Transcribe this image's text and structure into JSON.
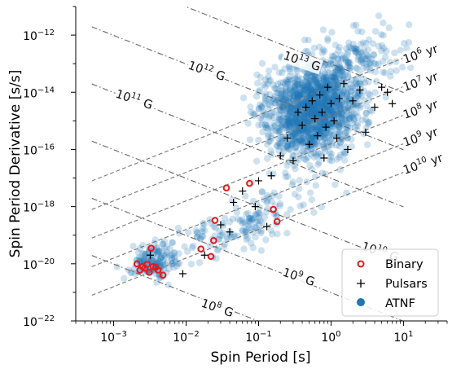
{
  "chart_data": {
    "type": "scatter",
    "xlabel": "Spin Period [s]",
    "ylabel": "Spin Period Derivative [s/s]",
    "xscale": "log",
    "yscale": "log",
    "xlim": [
      0.0003,
      40
    ],
    "ylim": [
      1e-22,
      1e-11
    ],
    "x_ticks": [
      {
        "value": 0.001,
        "label": "10",
        "exp": "−3"
      },
      {
        "value": 0.01,
        "label": "10",
        "exp": "−2"
      },
      {
        "value": 0.1,
        "label": "10",
        "exp": "−1"
      },
      {
        "value": 1,
        "label": "10",
        "exp": "0"
      },
      {
        "value": 10,
        "label": "10",
        "exp": "1"
      }
    ],
    "y_ticks": [
      {
        "value": 1e-22,
        "label": "10",
        "exp": "−22"
      },
      {
        "value": 1e-20,
        "label": "10",
        "exp": "−20"
      },
      {
        "value": 1e-18,
        "label": "10",
        "exp": "−18"
      },
      {
        "value": 1e-16,
        "label": "10",
        "exp": "−16"
      },
      {
        "value": 1e-14,
        "label": "10",
        "exp": "−14"
      },
      {
        "value": 1e-12,
        "label": "10",
        "exp": "−12"
      }
    ],
    "grid": false,
    "legend_position": "bottom-right",
    "legend": [
      {
        "name": "Binary",
        "marker": "circle-open",
        "color": "#e31a1c"
      },
      {
        "name": "Pulsars",
        "marker": "plus",
        "color": "#000000"
      },
      {
        "name": "ATNF",
        "marker": "circle",
        "color": "#1f77b4"
      }
    ],
    "magnetic_field_lines": [
      {
        "label": "10",
        "exp": "8",
        "unit": "G",
        "B": 100000000.0
      },
      {
        "label": "10",
        "exp": "9",
        "unit": "G",
        "B": 1000000000.0
      },
      {
        "label": "10",
        "exp": "10",
        "unit": "G",
        "B": 10000000000.0
      },
      {
        "label": "10",
        "exp": "11",
        "unit": "G",
        "B": 100000000000.0
      },
      {
        "label": "10",
        "exp": "12",
        "unit": "G",
        "B": 1000000000000.0
      },
      {
        "label": "10",
        "exp": "13",
        "unit": "G",
        "B": 10000000000000.0
      }
    ],
    "age_lines": [
      {
        "label": "10",
        "exp": "6",
        "unit": "yr",
        "age_yr": 1000000.0
      },
      {
        "label": "10",
        "exp": "7",
        "unit": "yr",
        "age_yr": 10000000.0
      },
      {
        "label": "10",
        "exp": "8",
        "unit": "yr",
        "age_yr": 100000000.0
      },
      {
        "label": "10",
        "exp": "9",
        "unit": "yr",
        "age_yr": 1000000000.0
      },
      {
        "label": "10",
        "exp": "10",
        "unit": "yr",
        "age_yr": 10000000000.0
      }
    ],
    "series": [
      {
        "name": "Binary",
        "points": [
          [
            0.0021,
            1e-20
          ],
          [
            0.0023,
            6e-21
          ],
          [
            0.0025,
            8e-21
          ],
          [
            0.0027,
            7e-21
          ],
          [
            0.0029,
            9.5e-21
          ],
          [
            0.0031,
            5e-21
          ],
          [
            0.0033,
            3.5e-20
          ],
          [
            0.0035,
            8e-21
          ],
          [
            0.0038,
            7.5e-21
          ],
          [
            0.0041,
            6e-21
          ],
          [
            0.0048,
            4e-21
          ],
          [
            0.016,
            3.3e-20
          ],
          [
            0.022,
            1.8e-20
          ],
          [
            0.024,
            6.5e-20
          ],
          [
            0.025,
            3.3e-19
          ],
          [
            0.036,
            4.5e-18
          ],
          [
            0.075,
            6.5e-18
          ],
          [
            0.16,
            8e-19
          ],
          [
            0.18,
            3e-19
          ]
        ]
      },
      {
        "name": "Pulsars",
        "points": [
          [
            0.0032,
            2e-20
          ],
          [
            0.009,
            4.5e-21
          ],
          [
            0.018,
            2e-20
          ],
          [
            0.03,
            2.3e-19
          ],
          [
            0.04,
            1.3e-19
          ],
          [
            0.045,
            1.4e-18
          ],
          [
            0.06,
            3.5e-18
          ],
          [
            0.09,
            1e-18
          ],
          [
            0.1,
            8e-18
          ],
          [
            0.13,
            2e-19
          ],
          [
            0.15,
            1.2e-17
          ],
          [
            0.2,
            6e-17
          ],
          [
            0.25,
            2.5e-16
          ],
          [
            0.3,
            4e-17
          ],
          [
            0.35,
            2e-15
          ],
          [
            0.4,
            7e-16
          ],
          [
            0.45,
            3e-15
          ],
          [
            0.5,
            1.5e-16
          ],
          [
            0.55,
            5e-15
          ],
          [
            0.6,
            1.2e-15
          ],
          [
            0.65,
            3e-16
          ],
          [
            0.7,
            8e-15
          ],
          [
            0.75,
            2e-15
          ],
          [
            0.8,
            5e-17
          ],
          [
            0.85,
            6e-16
          ],
          [
            0.9,
            1.5e-14
          ],
          [
            1.0,
            4e-15
          ],
          [
            1.1,
            1e-15
          ],
          [
            1.2,
            2.5e-16
          ],
          [
            1.3,
            6e-15
          ],
          [
            1.5,
            2e-14
          ],
          [
            1.7,
            1e-16
          ],
          [
            2.0,
            5e-15
          ],
          [
            2.5,
            1.2e-14
          ],
          [
            3.0,
            4e-16
          ],
          [
            4.0,
            3e-15
          ],
          [
            5.0,
            1.5e-14
          ],
          [
            6.0,
            1e-14
          ],
          [
            7.0,
            4e-15
          ]
        ]
      }
    ]
  }
}
